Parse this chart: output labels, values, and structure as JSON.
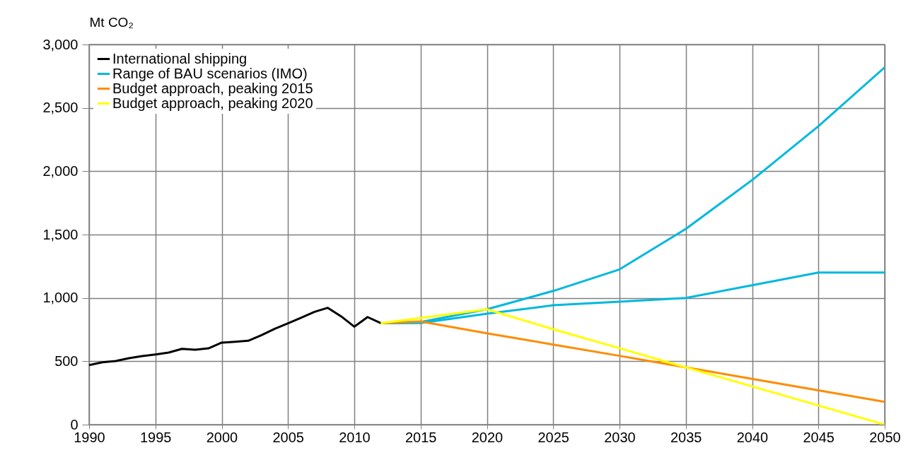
{
  "chart_data": {
    "type": "line",
    "ylabel": "Mt CO₂",
    "xlim": [
      1990,
      2050
    ],
    "xticks": [
      1990,
      1995,
      2000,
      2005,
      2010,
      2015,
      2020,
      2025,
      2030,
      2035,
      2040,
      2045,
      2050
    ],
    "ylim": [
      0,
      3000
    ],
    "yticks": [
      0,
      500,
      {
        "value": 1000,
        "label": "1,000"
      },
      {
        "value": 1500,
        "label": "1,500"
      },
      {
        "value": 2000,
        "label": "2,000"
      },
      {
        "value": 2500,
        "label": "2,500"
      },
      {
        "value": 3000,
        "label": "3,000"
      }
    ],
    "grid": true,
    "legend": "top left",
    "line_style": "solid",
    "marker": "none",
    "series": [
      {
        "name": "International shipping",
        "color": "#000000",
        "x": [
          1990,
          1991,
          1992,
          1993,
          1994,
          1995,
          1996,
          1997,
          1998,
          1999,
          2000,
          2001,
          2002,
          2003,
          2004,
          2005,
          2006,
          2007,
          2008,
          2009,
          2010,
          2011,
          2012
        ],
        "values": [
          470,
          492,
          502,
          524,
          541,
          554,
          569,
          598,
          591,
          602,
          647,
          654,
          662,
          706,
          756,
          799,
          844,
          890,
          922,
          855,
          773,
          849,
          801
        ]
      },
      {
        "name": "Range of BAU scenarios (IMO)",
        "color": "#00b8de",
        "x": [
          2012,
          2015,
          2020,
          2025,
          2030,
          2035,
          2040,
          2045,
          2050
        ],
        "values": [
          800,
          810,
          910,
          1055,
          1225,
          1545,
          1930,
          2355,
          2820
        ]
      },
      {
        "name": null,
        "color": "#00b8de",
        "x": [
          2012,
          2015,
          2020,
          2025,
          2030,
          2035,
          2040,
          2045,
          2050
        ],
        "values": [
          800,
          801,
          875,
          942,
          970,
          1000,
          1100,
          1200,
          1200
        ]
      },
      {
        "name": "Budget approach, peaking 2015",
        "color": "#ff8c00",
        "x": [
          2012,
          2015,
          2020,
          2025,
          2030,
          2035,
          2040,
          2045,
          2050
        ],
        "values": [
          800,
          814,
          721,
          632,
          543,
          452,
          361,
          270,
          180
        ]
      },
      {
        "name": "Budget approach, peaking 2020",
        "color": "#ffff00",
        "x": [
          2012,
          2020,
          2025,
          2030,
          2035,
          2040,
          2045,
          2050
        ],
        "values": [
          800,
          910,
          753,
          603,
          452,
          302,
          151,
          0
        ]
      }
    ]
  }
}
